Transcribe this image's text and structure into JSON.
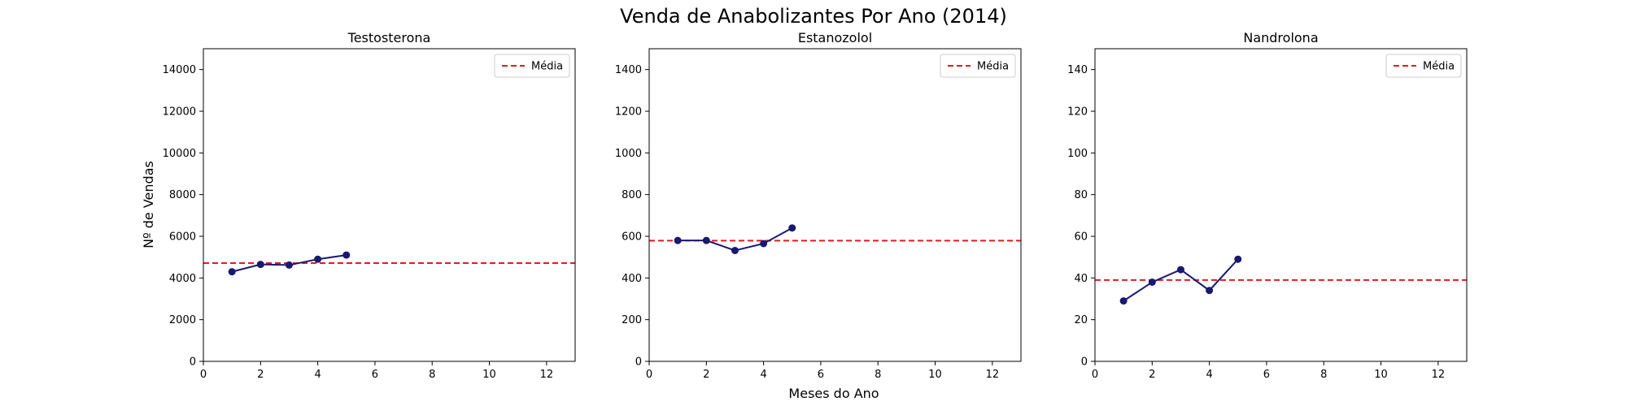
{
  "chart_data": {
    "type": "line",
    "title": "Venda de Anabolizantes Por Ano (2014)",
    "xlabel": "Meses do Ano",
    "ylabel": "Nº de Vendas",
    "legend_label": "Média",
    "legend_position": "upper right",
    "grid": false,
    "colors": {
      "line": "#191970",
      "mean": "#e31a1c"
    },
    "panels": [
      {
        "title": "Testosterona",
        "x": [
          1,
          2,
          3,
          4,
          5
        ],
        "y": [
          4300,
          4650,
          4620,
          4900,
          5100
        ],
        "mean": 4714,
        "xlim": [
          0,
          13
        ],
        "ylim": [
          0,
          15000
        ],
        "xticks": [
          0,
          2,
          4,
          6,
          8,
          10,
          12
        ],
        "yticks": [
          0,
          2000,
          4000,
          6000,
          8000,
          10000,
          12000,
          14000
        ]
      },
      {
        "title": "Estanozolol",
        "x": [
          1,
          2,
          3,
          4,
          5
        ],
        "y": [
          580,
          580,
          532,
          565,
          640
        ],
        "mean": 579,
        "xlim": [
          0,
          13
        ],
        "ylim": [
          0,
          1500
        ],
        "xticks": [
          0,
          2,
          4,
          6,
          8,
          10,
          12
        ],
        "yticks": [
          0,
          200,
          400,
          600,
          800,
          1000,
          1200,
          1400
        ]
      },
      {
        "title": "Nandrolona",
        "x": [
          1,
          2,
          3,
          4,
          5
        ],
        "y": [
          29,
          38,
          44,
          34,
          49
        ],
        "mean": 39,
        "xlim": [
          0,
          13
        ],
        "ylim": [
          0,
          150
        ],
        "xticks": [
          0,
          2,
          4,
          6,
          8,
          10,
          12
        ],
        "yticks": [
          0,
          20,
          40,
          60,
          80,
          100,
          120,
          140
        ]
      }
    ]
  }
}
